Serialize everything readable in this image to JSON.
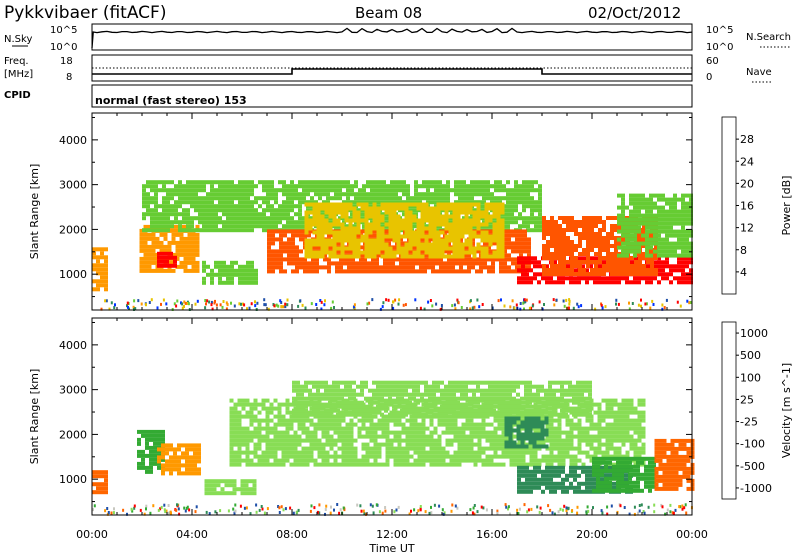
{
  "header": {
    "station": "Pykkvibaer (fitACF)",
    "beam": "Beam 08",
    "date": "02/Oct/2012"
  },
  "control_panel": {
    "nsky_label": "N.Sky",
    "nsearch_label": "N.Search",
    "nsky_ticks": [
      "10^5",
      "10^0"
    ],
    "nsearch_ticks": [
      "10^5",
      "10^0"
    ],
    "freq_label_1": "Freq.",
    "freq_label_2": "[MHz]",
    "freq_ticks": [
      "18",
      "8"
    ],
    "nave_label": "Nave",
    "nave_ticks": [
      "60",
      "0"
    ],
    "cpid_label": "CPID",
    "cpid_text": "normal (fast stereo) 153"
  },
  "chart_data": [
    {
      "type": "heatmap",
      "name": "power",
      "ylabel": "Slant Range [km]",
      "ylim": [
        200,
        4600
      ],
      "yticks": [
        "1000",
        "2000",
        "3000",
        "4000"
      ],
      "colorbar_label": "Power [dB]",
      "colorbar_ticks": [
        "28",
        "24",
        "20",
        "16",
        "12",
        "8",
        "4"
      ],
      "colorbar_colors": [
        "#ff0000",
        "#ff5500",
        "#ff9900",
        "#e8c400",
        "#66cc33",
        "#2e8b57",
        "#1f4fa8",
        "#0033ff"
      ],
      "regions": [
        {
          "t0": 0.0,
          "t1": 0.6,
          "r0": 700,
          "r1": 1600,
          "val": 20
        },
        {
          "t0": 1.9,
          "t1": 4.2,
          "r0": 1100,
          "r1": 2100,
          "val": 18
        },
        {
          "t0": 2.6,
          "t1": 3.4,
          "r0": 1200,
          "r1": 1500,
          "val": 28
        },
        {
          "t0": 4.4,
          "t1": 6.6,
          "r0": 800,
          "r1": 1300,
          "val": 10
        },
        {
          "t0": 2.0,
          "t1": 18.0,
          "r0": 2000,
          "r1": 3100,
          "val": 10
        },
        {
          "t0": 7.0,
          "t1": 17.5,
          "r0": 1100,
          "r1": 2000,
          "val": 24
        },
        {
          "t0": 8.5,
          "t1": 16.5,
          "r0": 1400,
          "r1": 2600,
          "val": 16
        },
        {
          "t0": 17.0,
          "t1": 24.0,
          "r0": 800,
          "r1": 1400,
          "val": 28
        },
        {
          "t0": 18.0,
          "t1": 22.5,
          "r0": 1000,
          "r1": 2300,
          "val": 22
        },
        {
          "t0": 21.0,
          "t1": 24.0,
          "r0": 1400,
          "r1": 2800,
          "val": 12
        }
      ]
    },
    {
      "type": "heatmap",
      "name": "velocity",
      "ylabel": "Slant Range [km]",
      "ylim": [
        200,
        4600
      ],
      "yticks": [
        "1000",
        "2000",
        "3000",
        "4000"
      ],
      "colorbar_label": "Velocity [m s^-1]",
      "colorbar_ticks": [
        "1000",
        "500",
        "100",
        "25",
        "-25",
        "-100",
        "-500",
        "-1000"
      ],
      "colorbar_colors": [
        "#1f4fa8",
        "#2e8b57",
        "#33aa33",
        "#88dd55",
        "#c8c8c0",
        "#ff9900",
        "#ff6600",
        "#ff0000"
      ],
      "regions": [
        {
          "t0": 0.0,
          "t1": 0.6,
          "r0": 700,
          "r1": 1200,
          "val": -500
        },
        {
          "t0": 1.8,
          "t1": 2.8,
          "r0": 1200,
          "r1": 2100,
          "val": 100
        },
        {
          "t0": 2.6,
          "t1": 4.3,
          "r0": 1100,
          "r1": 1800,
          "val": -300
        },
        {
          "t0": 4.5,
          "t1": 6.5,
          "r0": 700,
          "r1": 1000,
          "val": 50
        },
        {
          "t0": 5.5,
          "t1": 22.0,
          "r0": 1300,
          "r1": 2800,
          "val": 0
        },
        {
          "t0": 8.0,
          "t1": 20.0,
          "r0": 2400,
          "r1": 3200,
          "val": 0
        },
        {
          "t0": 16.5,
          "t1": 18.2,
          "r0": 1700,
          "r1": 2400,
          "val": 500
        },
        {
          "t0": 17.0,
          "t1": 21.5,
          "r0": 700,
          "r1": 1300,
          "val": 300
        },
        {
          "t0": 20.0,
          "t1": 22.5,
          "r0": 700,
          "r1": 1500,
          "val": 100
        },
        {
          "t0": 22.5,
          "t1": 24.0,
          "r0": 800,
          "r1": 1900,
          "val": -400
        }
      ]
    }
  ],
  "time_axis": {
    "ticks": [
      "00:00",
      "04:00",
      "08:00",
      "12:00",
      "16:00",
      "20:00",
      "00:00"
    ],
    "label": "Time UT"
  }
}
